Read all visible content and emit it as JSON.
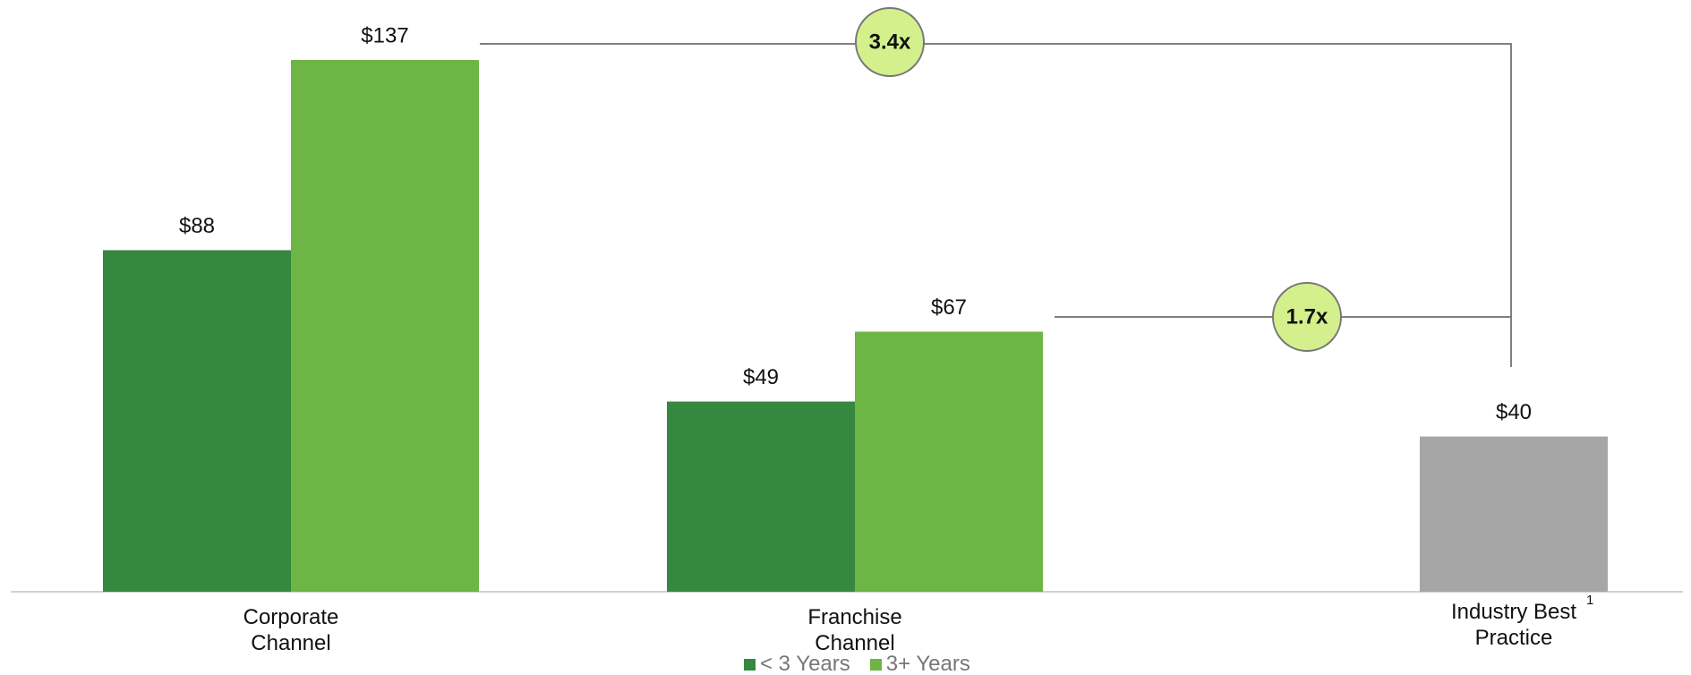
{
  "chart_data": {
    "type": "bar",
    "categories": [
      "Corporate Channel",
      "Franchise Channel",
      "Industry Best Practice"
    ],
    "footnote_marker": "1",
    "series": [
      {
        "name": "< 3 Years",
        "color": "#368740",
        "values": [
          88,
          49,
          null
        ],
        "value_labels": [
          "$88",
          "$49",
          null
        ]
      },
      {
        "name": "3+ Years",
        "color": "#6db545",
        "values": [
          137,
          67,
          null
        ],
        "value_labels": [
          "$137",
          "$67",
          null
        ]
      }
    ],
    "benchmark": {
      "value": 40,
      "value_label": "$40",
      "color": "#a6a6a6"
    },
    "annotations": [
      "3.4x",
      "1.7x"
    ],
    "annotation_color": "#d4f08c",
    "ylim": [
      0,
      140
    ]
  }
}
